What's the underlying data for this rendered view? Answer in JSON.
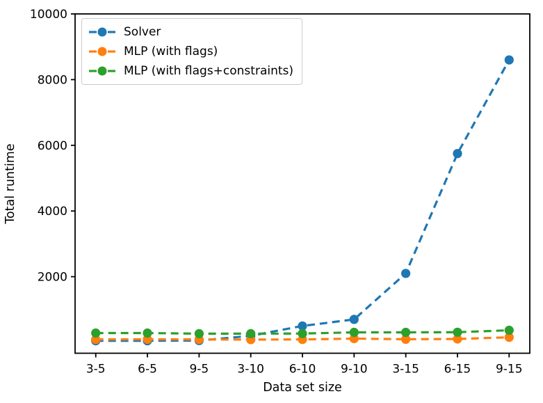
{
  "chart_data": {
    "type": "line",
    "xlabel": "Data set size",
    "ylabel": "Total runtime",
    "categories": [
      "3-5",
      "6-5",
      "9-5",
      "3-10",
      "6-10",
      "9-10",
      "3-15",
      "6-15",
      "9-15"
    ],
    "series": [
      {
        "name": "Solver",
        "color": "#1f77b4",
        "values": [
          50,
          50,
          55,
          200,
          500,
          700,
          2100,
          5750,
          8600
        ]
      },
      {
        "name": "MLP (with flags)",
        "color": "#ff7f0e",
        "values": [
          90,
          95,
          90,
          85,
          90,
          115,
          95,
          105,
          155
        ]
      },
      {
        "name": "MLP (with flags+constraints)",
        "color": "#2ca02c",
        "values": [
          285,
          285,
          265,
          265,
          270,
          305,
          305,
          310,
          370
        ]
      }
    ],
    "y_ticks": [
      2000,
      4000,
      6000,
      8000,
      10000
    ],
    "ylim": [
      -330,
      10000
    ],
    "x_margin": 0.4,
    "grid": false,
    "legend_position": "upper left",
    "line_style": "dashed",
    "marker": "circle",
    "axis_color": "#000000"
  }
}
